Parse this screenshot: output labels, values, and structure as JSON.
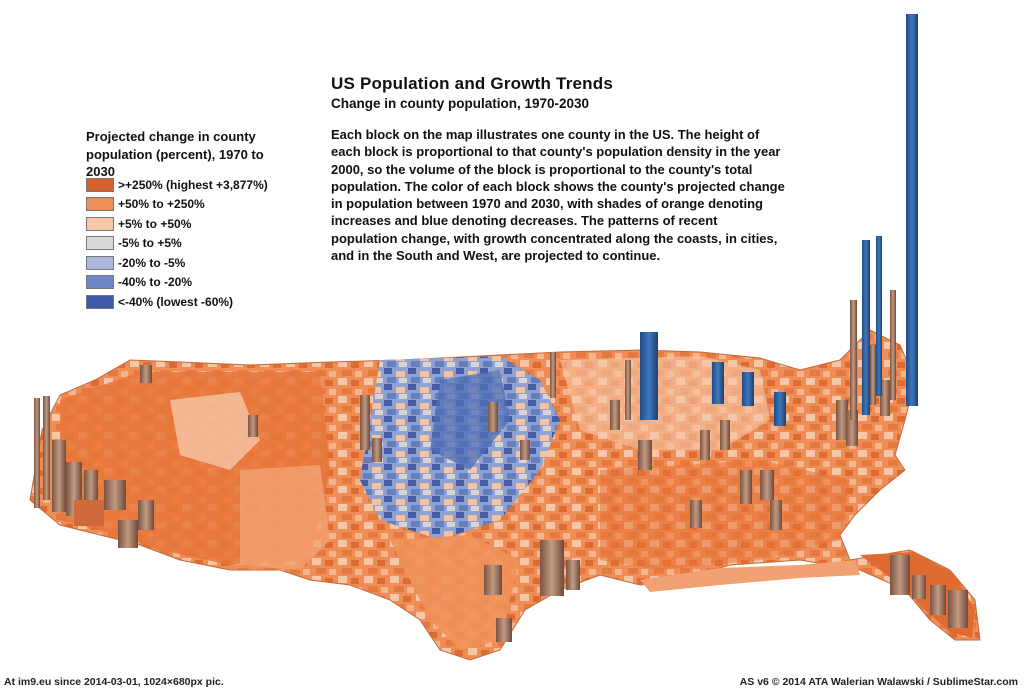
{
  "title": "US Population and Growth Trends",
  "subtitle": "Change in county population, 1970-2030",
  "description": "Each block on the map illustrates one county in the US.  The height of each block is proportional to that county's population density in the year 2000, so the volume of the block is proportional to the county's total population.  The color of each block shows the county's projected change in population between 1970 and 2030, with shades of orange denoting increases and blue denoting decreases. The patterns of recent population change, with growth concentrated along the coasts, in cities, and in the South and West, are projected to continue.",
  "legend": {
    "title": "Projected change in county population (percent), 1970 to 2030",
    "items": [
      {
        "label": ">+250% (highest +3,877%)",
        "color": "#d6602a"
      },
      {
        "label": "+50% to +250%",
        "color": "#f0915a"
      },
      {
        "label": "+5% to +50%",
        "color": "#f6c6a6"
      },
      {
        "label": "-5% to +5%",
        "color": "#d9d9d9"
      },
      {
        "label": "-20% to -5%",
        "color": "#aeb8dc"
      },
      {
        "label": "-40% to -20%",
        "color": "#6f86c9"
      },
      {
        "label": "<-40% (lowest -60%)",
        "color": "#3c5aa8"
      }
    ]
  },
  "footer": {
    "left": "At im9.eu  since 2014-03-01, 1024×680px pic.",
    "right": "AS v6 © 2014 ATA Walerian Walawski / SublimeStar.com"
  },
  "colors": {
    "growth_high": "#d6602a",
    "growth_mid": "#f0915a",
    "growth_low": "#f6c6a6",
    "stable": "#d9d9d9",
    "decline_low": "#aeb8dc",
    "decline_mid": "#6f86c9",
    "decline_high": "#3c5aa8",
    "tower_blue": "#2d5f9e",
    "tower_brown": "#a8745a"
  }
}
